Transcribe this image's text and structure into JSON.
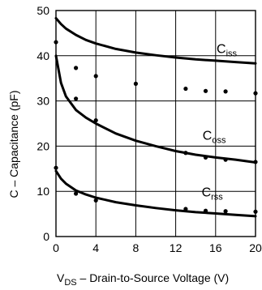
{
  "chart_data": {
    "type": "line",
    "xlabel": {
      "main": "V",
      "sub": "DS",
      "rest": " – Drain-to-Source Voltage (V)"
    },
    "ylabel": "C – Capacitance (pF)",
    "xlim": [
      0,
      20
    ],
    "ylim": [
      0,
      50
    ],
    "xticks": [
      0,
      4,
      8,
      12,
      16,
      20
    ],
    "yticks": [
      0,
      10,
      20,
      30,
      40,
      50
    ],
    "xtick_labels": [
      "0",
      "4",
      "8",
      "12",
      "16",
      "20"
    ],
    "ytick_labels": [
      "0",
      "10",
      "20",
      "30",
      "40",
      "50"
    ],
    "grid": true,
    "series": [
      {
        "label": {
          "main": "C",
          "sub": "iss"
        },
        "curve": {
          "x": [
            0,
            0.5,
            1,
            2,
            3,
            4,
            6,
            8,
            10,
            12,
            14,
            16,
            18,
            20
          ],
          "y": [
            48.3,
            47.0,
            46.0,
            44.6,
            43.5,
            42.7,
            41.5,
            40.7,
            40.1,
            39.6,
            39.2,
            38.9,
            38.6,
            38.3
          ]
        },
        "points": {
          "x": [
            0,
            2,
            4,
            8,
            13,
            15,
            17,
            20
          ],
          "y": [
            43.0,
            37.3,
            35.5,
            33.8,
            32.7,
            32.2,
            32.1,
            31.7
          ]
        }
      },
      {
        "label": {
          "main": "C",
          "sub": "oss"
        },
        "curve": {
          "x": [
            0,
            0.5,
            1,
            2,
            3,
            4,
            6,
            8,
            10,
            12,
            14,
            16,
            18,
            20
          ],
          "y": [
            40.0,
            34.0,
            31.0,
            28.0,
            26.3,
            25.0,
            22.8,
            21.2,
            20.0,
            18.9,
            18.1,
            17.5,
            17.0,
            16.4
          ]
        },
        "points": {
          "x": [
            2,
            4,
            13,
            15,
            17,
            20
          ],
          "y": [
            30.5,
            25.7,
            18.5,
            17.5,
            17.0,
            16.5
          ]
        }
      },
      {
        "label": {
          "main": "C",
          "sub": "rss"
        },
        "curve": {
          "x": [
            0,
            0.5,
            1,
            2,
            3,
            4,
            6,
            8,
            10,
            12,
            14,
            16,
            18,
            20
          ],
          "y": [
            14.5,
            12.8,
            11.7,
            10.2,
            9.3,
            8.6,
            7.6,
            6.9,
            6.3,
            5.8,
            5.4,
            5.1,
            4.8,
            4.5
          ]
        },
        "points": {
          "x": [
            0,
            2,
            4,
            13,
            15,
            17,
            20
          ],
          "y": [
            15.2,
            9.5,
            8.0,
            6.1,
            5.7,
            5.6,
            5.5
          ]
        }
      }
    ],
    "colors": {
      "line": "#000000",
      "grid": "#000000",
      "background": "#ffffff"
    }
  }
}
